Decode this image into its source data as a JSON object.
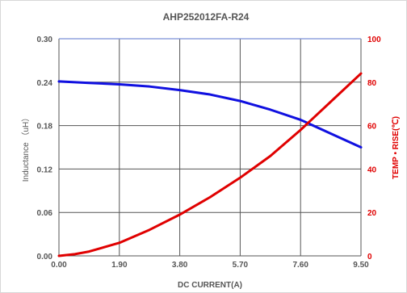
{
  "chart_data": {
    "type": "line",
    "title": "AHP252012FA-R24",
    "xlabel": "DC CURRENT(A)",
    "ylabel_left": "Inductance （uH）",
    "ylabel_right": "TEMP • RISE(℃)",
    "x_ticks": [
      "0.00",
      "1.90",
      "3.80",
      "5.70",
      "7.60",
      "9.50"
    ],
    "y_left_ticks": [
      "0.00",
      "0.06",
      "0.12",
      "0.18",
      "0.24",
      "0.30"
    ],
    "y_right_ticks": [
      "0",
      "20",
      "40",
      "60",
      "80",
      "100"
    ],
    "xlim": [
      0,
      9.5
    ],
    "ylim_left": [
      0,
      0.3
    ],
    "ylim_right": [
      0,
      100
    ],
    "grid": true,
    "series": [
      {
        "axis": "left",
        "color": "#1010e0",
        "x": [
          0,
          0.95,
          1.9,
          2.85,
          3.8,
          4.75,
          5.7,
          6.65,
          7.6,
          8.55,
          9.5
        ],
        "values": [
          0.241,
          0.239,
          0.237,
          0.234,
          0.229,
          0.223,
          0.214,
          0.202,
          0.188,
          0.169,
          0.15
        ]
      },
      {
        "axis": "right",
        "color": "#e00000",
        "x": [
          0,
          0.5,
          0.95,
          1.9,
          2.85,
          3.8,
          4.75,
          5.7,
          6.65,
          7.6,
          8.55,
          9.5
        ],
        "values": [
          0,
          0.8,
          2,
          6,
          12,
          19,
          27,
          36,
          46,
          58,
          71,
          84
        ]
      }
    ],
    "colors": {
      "left_axis": "#555555",
      "right_axis": "#e00000",
      "grid": "#555555",
      "frame_top": "#7a8fd6"
    }
  }
}
